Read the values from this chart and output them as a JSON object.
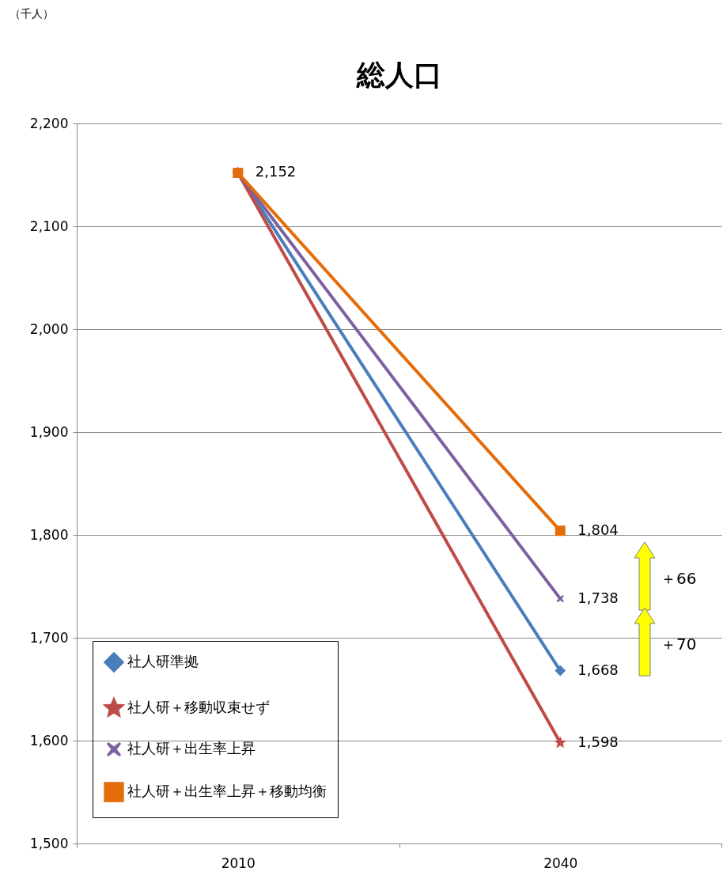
{
  "chart_data": {
    "type": "line",
    "title": "総人口",
    "categories": [
      "2010",
      "2040"
    ],
    "series": [
      {
        "name": "社人研準拠",
        "color": "#4a7ebb",
        "marker": "diamond",
        "values": [
          2152,
          1668
        ],
        "value_labels": [
          null,
          "1,668"
        ]
      },
      {
        "name": "社人研＋移動収束せず",
        "color": "#be4b48",
        "marker": "star",
        "values": [
          2152,
          1598
        ],
        "value_labels": [
          null,
          "1,598"
        ]
      },
      {
        "name": "社人研＋出生率上昇",
        "color": "#7d60a0",
        "marker": "cross",
        "values": [
          2152,
          1738
        ],
        "value_labels": [
          null,
          "1,738"
        ]
      },
      {
        "name": "社人研＋出生率上昇＋移動均衡",
        "color": "#e46c0a",
        "marker": "square",
        "values": [
          2152,
          1804
        ],
        "value_labels": [
          "2,152",
          "1,804"
        ]
      }
    ],
    "ylim": [
      1500,
      2200
    ],
    "yticks": [
      {
        "value": 1500,
        "label": "1,500"
      },
      {
        "value": 1600,
        "label": "1,600"
      },
      {
        "value": 1700,
        "label": "1,700"
      },
      {
        "value": 1800,
        "label": "1,800"
      },
      {
        "value": 1900,
        "label": "1,900"
      },
      {
        "value": 2000,
        "label": "2,000"
      },
      {
        "value": 2100,
        "label": "2,100"
      },
      {
        "value": 2200,
        "label": "2,200"
      }
    ],
    "grid": "y",
    "legend": "bottom left",
    "line_style": "solid",
    "annotations": [
      "（千人）",
      "＋66",
      "＋70"
    ]
  }
}
